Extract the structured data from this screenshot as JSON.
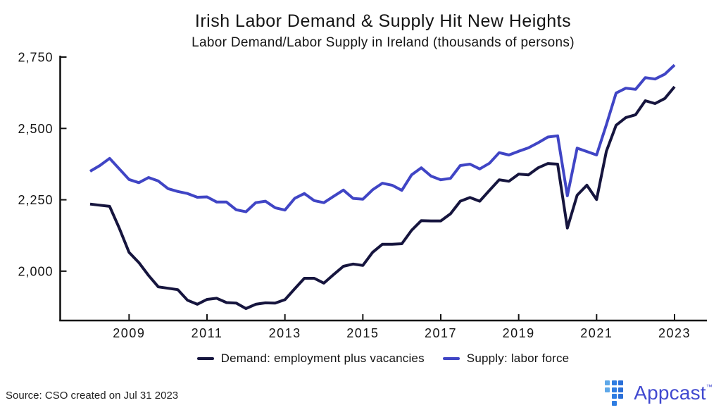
{
  "title": "Irish Labor Demand & Supply Hit New Heights",
  "subtitle": "Labor Demand/Labor Supply in Ireland (thousands of persons)",
  "source_note": "Source: CSO created on Jul 31 2023",
  "brand": {
    "name": "Appcast",
    "tm": "™",
    "wordmark_color": "#4149d0",
    "mark_columns": [
      {
        "color": "#5ea8e9",
        "rows": [
          0,
          1
        ]
      },
      {
        "color": "#2f7de2",
        "rows": [
          0,
          1,
          2,
          3
        ]
      },
      {
        "color": "#2a6fd8",
        "rows": [
          0,
          1,
          2
        ]
      }
    ]
  },
  "chart_data": {
    "type": "line",
    "title": "Irish Labor Demand & Supply Hit New Heights",
    "subtitle": "Labor Demand/Labor Supply in Ireland (thousands of persons)",
    "xlabel": "",
    "ylabel": "",
    "unit": "thousands of persons",
    "frequency": "quarterly",
    "x_start_year": 2008.0,
    "x_step_years": 0.25,
    "xlim": [
      2007.2,
      2023.8
    ],
    "ylim": [
      1827,
      2750
    ],
    "grid": false,
    "legend_position": "bottom-center",
    "x_ticks": [
      2009,
      2011,
      2013,
      2015,
      2017,
      2019,
      2021,
      2023
    ],
    "y_ticks": [
      {
        "value": 2000,
        "label": "2,000"
      },
      {
        "value": 2250,
        "label": "2,250"
      },
      {
        "value": 2500,
        "label": "2,500"
      },
      {
        "value": 2750,
        "label": "2,750"
      }
    ],
    "axis_color": "#141414",
    "series": [
      {
        "name": "Demand: employment plus vacancies",
        "color": "#16153e",
        "values": [
          2235,
          2231,
          2227,
          2150,
          2066,
          2030,
          1985,
          1945,
          1940,
          1935,
          1898,
          1884,
          1901,
          1905,
          1890,
          1888,
          1869,
          1884,
          1889,
          1888,
          1900,
          1938,
          1975,
          1975,
          1958,
          1988,
          2017,
          2025,
          2020,
          2066,
          2094,
          2094,
          2096,
          2143,
          2177,
          2176,
          2176,
          2201,
          2245,
          2258,
          2245,
          2283,
          2320,
          2315,
          2340,
          2337,
          2362,
          2377,
          2375,
          2151,
          2266,
          2301,
          2251,
          2420,
          2511,
          2538,
          2548,
          2597,
          2587,
          2605,
          2646
        ]
      },
      {
        "name": "Supply: labor force",
        "color": "#4045c5",
        "values": [
          2350,
          2370,
          2395,
          2358,
          2321,
          2310,
          2328,
          2316,
          2289,
          2279,
          2272,
          2259,
          2260,
          2242,
          2242,
          2215,
          2208,
          2240,
          2245,
          2222,
          2214,
          2255,
          2272,
          2247,
          2240,
          2262,
          2284,
          2255,
          2252,
          2285,
          2308,
          2301,
          2283,
          2337,
          2362,
          2333,
          2320,
          2325,
          2370,
          2375,
          2358,
          2378,
          2415,
          2407,
          2420,
          2432,
          2450,
          2470,
          2474,
          2264,
          2431,
          2419,
          2407,
          2513,
          2624,
          2641,
          2637,
          2678,
          2673,
          2690,
          2722
        ]
      }
    ]
  }
}
